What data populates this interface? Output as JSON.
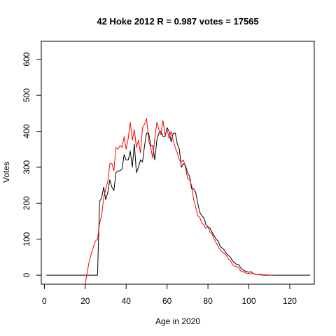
{
  "chart_data": {
    "type": "line",
    "title": "42 Hoke 2012 R = 0.987 votes = 17565",
    "xlabel": "Age in 2020",
    "ylabel": "Votes",
    "xlim": [
      -1.5,
      132
    ],
    "ylim": [
      -25,
      650
    ],
    "x_ticks": [
      0,
      20,
      40,
      60,
      80,
      100,
      120
    ],
    "y_ticks": [
      0,
      100,
      200,
      300,
      400,
      500,
      600
    ],
    "grid": false,
    "colors": {
      "series_black": "#000000",
      "series_red": "#ff0000"
    },
    "series": [
      {
        "color": "#000000",
        "x": [
          1,
          2,
          3,
          4,
          5,
          6,
          7,
          8,
          9,
          10,
          11,
          12,
          13,
          14,
          15,
          16,
          17,
          18,
          19,
          20,
          21,
          22,
          23,
          24,
          25,
          26,
          27,
          28,
          29,
          30,
          31,
          32,
          33,
          34,
          35,
          36,
          37,
          38,
          39,
          40,
          41,
          42,
          43,
          44,
          45,
          46,
          47,
          48,
          49,
          50,
          51,
          52,
          53,
          54,
          55,
          56,
          57,
          58,
          59,
          60,
          61,
          62,
          63,
          64,
          65,
          66,
          67,
          68,
          69,
          70,
          71,
          72,
          73,
          74,
          75,
          76,
          77,
          78,
          79,
          80,
          81,
          82,
          83,
          84,
          85,
          86,
          87,
          88,
          89,
          90,
          91,
          92,
          93,
          94,
          95,
          96,
          97,
          98,
          99,
          100,
          101,
          102,
          103,
          104,
          105,
          106,
          107,
          108,
          109,
          110,
          111,
          112,
          113,
          114,
          115,
          116,
          117,
          118,
          119,
          120,
          121,
          122,
          123,
          124,
          125,
          126,
          127,
          128,
          129,
          130
        ],
        "y": [
          0,
          0,
          0,
          0,
          0,
          0,
          0,
          0,
          0,
          0,
          0,
          0,
          0,
          0,
          0,
          0,
          0,
          0,
          0,
          0,
          0,
          0,
          0,
          0,
          0,
          0,
          205,
          215,
          245,
          210,
          230,
          265,
          245,
          235,
          285,
          290,
          290,
          295,
          335,
          320,
          320,
          345,
          300,
          365,
          285,
          300,
          320,
          315,
          360,
          395,
          395,
          360,
          360,
          320,
          375,
          395,
          400,
          385,
          385,
          410,
          400,
          370,
          395,
          395,
          365,
          350,
          300,
          310,
          305,
          285,
          275,
          240,
          240,
          230,
          200,
          175,
          165,
          160,
          140,
          135,
          130,
          120,
          110,
          100,
          95,
          80,
          75,
          70,
          60,
          55,
          50,
          40,
          35,
          30,
          30,
          20,
          15,
          12,
          10,
          8,
          10,
          5,
          2,
          2,
          1,
          1,
          0,
          0,
          0,
          0,
          0,
          0,
          0,
          0,
          0,
          0,
          0,
          0,
          0,
          0,
          0,
          0,
          0,
          0,
          0,
          0,
          0,
          0,
          0,
          0
        ]
      },
      {
        "color": "#ff0000",
        "x": [
          20,
          21,
          22,
          23,
          24,
          25,
          26,
          27,
          28,
          29,
          30,
          31,
          32,
          33,
          34,
          35,
          36,
          37,
          38,
          39,
          40,
          41,
          42,
          43,
          44,
          45,
          46,
          47,
          48,
          49,
          50,
          51,
          52,
          53,
          54,
          55,
          56,
          57,
          58,
          59,
          60,
          61,
          62,
          63,
          64,
          65,
          66,
          67,
          68,
          69,
          70,
          71,
          72,
          73,
          74,
          75,
          76,
          77,
          78,
          79,
          80,
          81,
          82,
          83,
          84,
          85,
          86,
          87,
          88,
          89,
          90,
          91,
          92,
          93,
          94,
          95,
          96,
          97,
          98,
          99,
          100,
          101,
          102,
          103,
          104,
          105,
          106,
          107,
          108,
          109,
          110,
          111,
          112
        ],
        "y": [
          -25,
          10,
          40,
          60,
          80,
          95,
          100,
          145,
          165,
          215,
          240,
          260,
          310,
          310,
          290,
          355,
          350,
          360,
          355,
          385,
          350,
          380,
          425,
          375,
          405,
          355,
          375,
          340,
          410,
          420,
          435,
          375,
          355,
          325,
          380,
          425,
          405,
          390,
          430,
          390,
          405,
          380,
          400,
          375,
          355,
          340,
          320,
          315,
          320,
          300,
          270,
          265,
          250,
          210,
          190,
          165,
          160,
          145,
          140,
          130,
          135,
          120,
          115,
          100,
          90,
          80,
          70,
          65,
          60,
          55,
          45,
          40,
          30,
          25,
          25,
          20,
          12,
          10,
          8,
          5,
          5,
          4,
          5,
          3,
          2,
          2,
          2,
          1,
          1,
          1,
          0,
          0,
          0
        ]
      }
    ]
  }
}
